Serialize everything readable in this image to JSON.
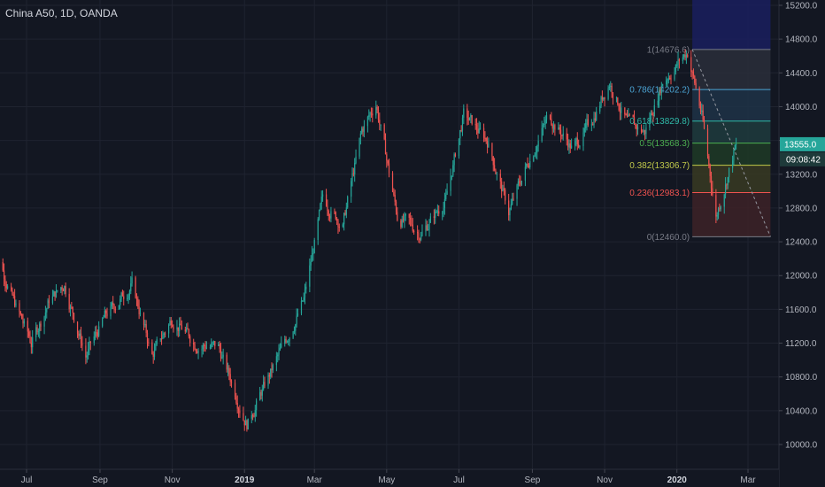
{
  "header": {
    "symbol_label": "China A50, 1D, OANDA"
  },
  "colors": {
    "background": "#131722",
    "grid": "#1f2330",
    "up": "#26a69a",
    "down": "#ef5350",
    "text": "#b2b5be",
    "price_tag": "#26a69a"
  },
  "chart_data": {
    "type": "candlestick",
    "title": "China A50, 1D, OANDA",
    "yaxis": {
      "min": 9800,
      "max": 15300,
      "ticks": [
        10000,
        10400,
        10800,
        11200,
        11600,
        12000,
        12400,
        12800,
        13200,
        13600,
        14000,
        14400,
        14800,
        15200
      ],
      "tick_labels": [
        "10000.0",
        "10400.0",
        "10800.0",
        "11200.0",
        "11600.0",
        "12000.0",
        "12400.0",
        "12800.0",
        "13200.0",
        "13600.0",
        "14000.0",
        "14400.0",
        "14800.0",
        "15200.0"
      ]
    },
    "xaxis": {
      "ticks": [
        {
          "label": "Jul",
          "date": "2018-07-01",
          "bold": false
        },
        {
          "label": "Sep",
          "date": "2018-09-01",
          "bold": false
        },
        {
          "label": "Nov",
          "date": "2018-11-01",
          "bold": false
        },
        {
          "label": "2019",
          "date": "2019-01-01",
          "bold": true
        },
        {
          "label": "Mar",
          "date": "2019-03-01",
          "bold": false
        },
        {
          "label": "May",
          "date": "2019-05-01",
          "bold": false
        },
        {
          "label": "Jul",
          "date": "2019-07-01",
          "bold": false
        },
        {
          "label": "Sep",
          "date": "2019-09-01",
          "bold": false
        },
        {
          "label": "Nov",
          "date": "2019-11-01",
          "bold": false
        },
        {
          "label": "2020",
          "date": "2020-01-01",
          "bold": true
        },
        {
          "label": "Mar",
          "date": "2020-03-01",
          "bold": false
        }
      ]
    },
    "price_path": [
      {
        "date": "2018-06-01",
        "close": 12500
      },
      {
        "date": "2018-06-20",
        "close": 11700
      },
      {
        "date": "2018-07-05",
        "close": 11200
      },
      {
        "date": "2018-07-20",
        "close": 11700
      },
      {
        "date": "2018-08-02",
        "close": 11900
      },
      {
        "date": "2018-08-20",
        "close": 11050
      },
      {
        "date": "2018-09-05",
        "close": 11500
      },
      {
        "date": "2018-09-28",
        "close": 11900
      },
      {
        "date": "2018-10-15",
        "close": 11050
      },
      {
        "date": "2018-11-01",
        "close": 11500
      },
      {
        "date": "2018-11-20",
        "close": 11200
      },
      {
        "date": "2018-12-10",
        "close": 11150
      },
      {
        "date": "2019-01-03",
        "close": 10250
      },
      {
        "date": "2019-01-25",
        "close": 10900
      },
      {
        "date": "2019-02-20",
        "close": 11700
      },
      {
        "date": "2019-03-08",
        "close": 12900
      },
      {
        "date": "2019-03-25",
        "close": 12600
      },
      {
        "date": "2019-04-10",
        "close": 13700
      },
      {
        "date": "2019-04-22",
        "close": 14050
      },
      {
        "date": "2019-05-10",
        "close": 12700
      },
      {
        "date": "2019-05-30",
        "close": 12500
      },
      {
        "date": "2019-06-20",
        "close": 12900
      },
      {
        "date": "2019-07-05",
        "close": 13900
      },
      {
        "date": "2019-07-25",
        "close": 13600
      },
      {
        "date": "2019-08-12",
        "close": 12750
      },
      {
        "date": "2019-08-30",
        "close": 13400
      },
      {
        "date": "2019-09-15",
        "close": 13900
      },
      {
        "date": "2019-10-05",
        "close": 13500
      },
      {
        "date": "2019-10-20",
        "close": 13800
      },
      {
        "date": "2019-11-05",
        "close": 14300
      },
      {
        "date": "2019-11-20",
        "close": 13800
      },
      {
        "date": "2019-12-05",
        "close": 13700
      },
      {
        "date": "2019-12-20",
        "close": 14300
      },
      {
        "date": "2020-01-10",
        "close": 14650
      },
      {
        "date": "2020-01-22",
        "close": 13900
      },
      {
        "date": "2020-02-03",
        "close": 12700
      },
      {
        "date": "2020-02-10",
        "close": 13050
      },
      {
        "date": "2020-02-20",
        "close": 13555
      }
    ],
    "fib_retracement": {
      "start_date": "2020-01-14",
      "end_date": "2020-03-20",
      "levels": [
        {
          "ratio_label": "1",
          "price": 14676.6,
          "label": "1(14676.6)",
          "line_color": "#787b86",
          "fill": "#2a2e39"
        },
        {
          "ratio_label": "0.786",
          "price": 14202.2,
          "label": "0.786(14202.2)",
          "line_color": "#4ba3d3",
          "fill": "#1f3347"
        },
        {
          "ratio_label": "0.618",
          "price": 13829.8,
          "label": "0.618(13829.8)",
          "line_color": "#2fb9a8",
          "fill": "#1e3b3d"
        },
        {
          "ratio_label": "0.5",
          "price": 13568.3,
          "label": "0.5(13568.3)",
          "line_color": "#4caf50",
          "fill": "#1e3a26"
        },
        {
          "ratio_label": "0.382",
          "price": 13306.7,
          "label": "0.382(13306.7)",
          "line_color": "#c0c84a",
          "fill": "#383a22"
        },
        {
          "ratio_label": "0.236",
          "price": 12983.1,
          "label": "0.236(12983.1)",
          "line_color": "#ef5350",
          "fill": "#3d2227"
        },
        {
          "ratio_label": "0",
          "price": 12460.0,
          "label": "0(12460.0)",
          "line_color": "#787b86",
          "fill": null
        }
      ],
      "top_zone": {
        "from": 14676.6,
        "to": 15300,
        "fill": "#1a1f5e"
      }
    },
    "last_price": {
      "value": 13555.0,
      "label": "13555.0",
      "countdown": "09:08:42"
    }
  }
}
